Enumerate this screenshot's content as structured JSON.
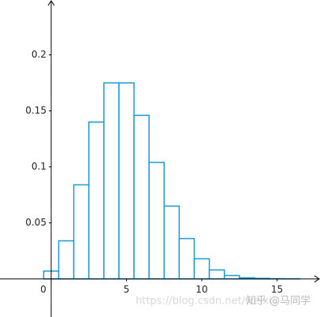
{
  "chart_data": {
    "type": "histogram",
    "bins": [
      -0.5,
      0.5,
      1.5,
      2.5,
      3.5,
      4.5,
      5.5,
      6.5,
      7.5,
      8.5,
      9.5,
      10.5,
      11.5,
      12.5,
      13.5,
      14.5,
      15.5,
      16.5
    ],
    "values": [
      0.007,
      0.034,
      0.084,
      0.14,
      0.175,
      0.175,
      0.146,
      0.104,
      0.065,
      0.036,
      0.018,
      0.008,
      0.003,
      0.001,
      0.0005,
      0.0002,
      0.0001
    ],
    "color": "#1a9ad6",
    "xlim": [
      -3.4,
      17.85
    ],
    "ylim": [
      -0.034,
      0.249
    ],
    "xticks": [
      0,
      5,
      10,
      15
    ],
    "yticks": [
      0.05,
      0.1,
      0.15,
      0.2
    ],
    "watermarks": [
      "https://blog.csdn.net/weixi",
      "知乎 @马同学"
    ]
  }
}
